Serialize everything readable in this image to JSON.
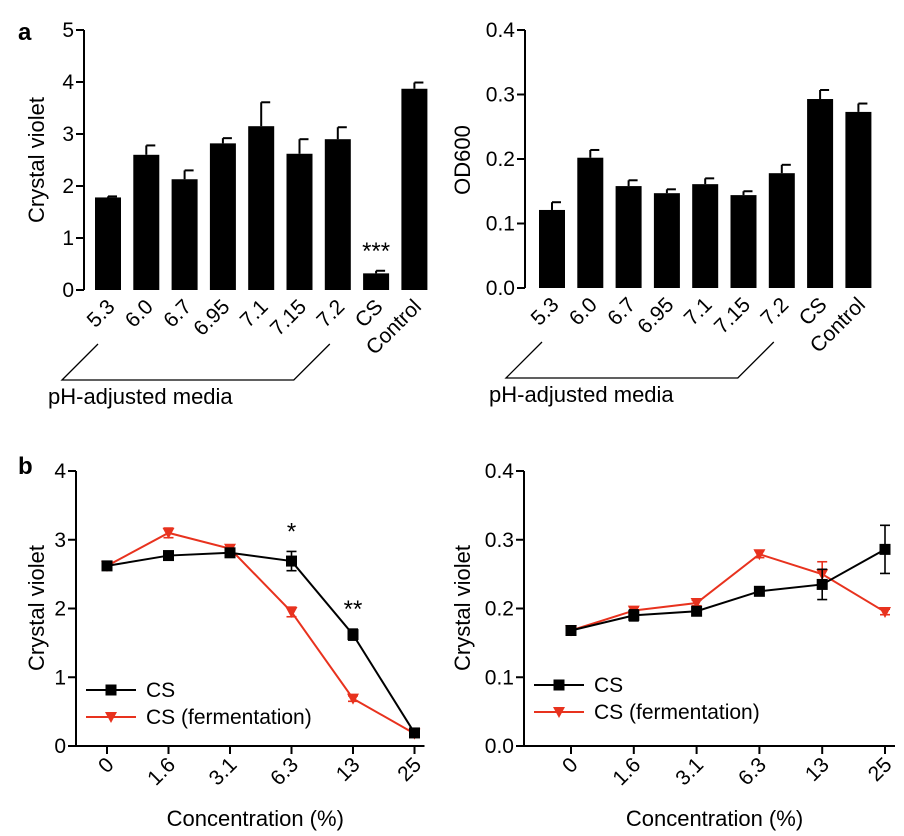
{
  "figure": {
    "panel_a": "a",
    "panel_b": "b",
    "group_label": "pH-adjusted media"
  },
  "colors": {
    "black": "#000000",
    "red": "#e8321e"
  },
  "chart_data": [
    {
      "type": "bar",
      "ylabel": "Crystal violet",
      "ylim": [
        0,
        5
      ],
      "yticks": [
        "0",
        "1",
        "2",
        "3",
        "4",
        "5"
      ],
      "categories": [
        "5.3",
        "6.0",
        "6.7",
        "6.95",
        "7.1",
        "7.15",
        "7.2",
        "CS",
        "Control"
      ],
      "values": [
        1.78,
        2.6,
        2.13,
        2.82,
        3.15,
        2.62,
        2.9,
        0.32,
        3.87
      ],
      "errors": [
        0.02,
        0.18,
        0.17,
        0.1,
        0.46,
        0.28,
        0.23,
        0.05,
        0.12
      ],
      "annotations": [
        {
          "category": "CS",
          "text": "***"
        }
      ]
    },
    {
      "type": "bar",
      "ylabel": "OD600",
      "ylim": [
        0,
        0.4
      ],
      "yticks": [
        "0.0",
        "0.1",
        "0.2",
        "0.3",
        "0.4"
      ],
      "categories": [
        "5.3",
        "6.0",
        "6.7",
        "6.95",
        "7.1",
        "7.15",
        "7.2",
        "CS",
        "Control"
      ],
      "values": [
        0.121,
        0.202,
        0.158,
        0.147,
        0.161,
        0.144,
        0.178,
        0.293,
        0.273
      ],
      "errors": [
        0.012,
        0.012,
        0.009,
        0.006,
        0.009,
        0.006,
        0.013,
        0.014,
        0.013
      ]
    },
    {
      "type": "line",
      "xlabel": "Concentration (%)",
      "ylabel": "Crystal violet",
      "ylim": [
        0,
        4
      ],
      "yticks": [
        "0",
        "1",
        "2",
        "3",
        "4"
      ],
      "categories": [
        "0",
        "1.6",
        "3.1",
        "6.3",
        "13",
        "25"
      ],
      "series": [
        {
          "name": "CS",
          "values": [
            2.62,
            2.77,
            2.81,
            2.69,
            1.62,
            0.19
          ],
          "errors": [
            0.03,
            0.04,
            0.04,
            0.14,
            0.08,
            0.03
          ]
        },
        {
          "name": "CS (fermentation)",
          "values": [
            2.62,
            3.1,
            2.87,
            1.95,
            0.69,
            0.18
          ],
          "errors": [
            0.03,
            0.07,
            0.05,
            0.07,
            0.04,
            0.02
          ]
        }
      ],
      "annotations": [
        {
          "category": "6.3",
          "text": "*"
        },
        {
          "category": "13",
          "text": "**"
        }
      ],
      "legend": "bottom-left"
    },
    {
      "type": "line",
      "xlabel": "Concentration (%)",
      "ylabel": "Crystal violet",
      "ylim": [
        0,
        0.4
      ],
      "yticks": [
        "0.0",
        "0.1",
        "0.2",
        "0.3",
        "0.4"
      ],
      "categories": [
        "0",
        "1.6",
        "3.1",
        "6.3",
        "13",
        "25"
      ],
      "series": [
        {
          "name": "CS",
          "values": [
            0.168,
            0.19,
            0.196,
            0.225,
            0.235,
            0.286
          ],
          "errors": [
            0.003,
            0.008,
            0.006,
            0.006,
            0.022,
            0.035
          ]
        },
        {
          "name": "CS (fermentation)",
          "values": [
            0.168,
            0.197,
            0.208,
            0.279,
            0.25,
            0.195
          ],
          "errors": [
            0.003,
            0.005,
            0.004,
            0.005,
            0.018,
            0.004
          ]
        }
      ],
      "legend": "bottom-left"
    }
  ]
}
